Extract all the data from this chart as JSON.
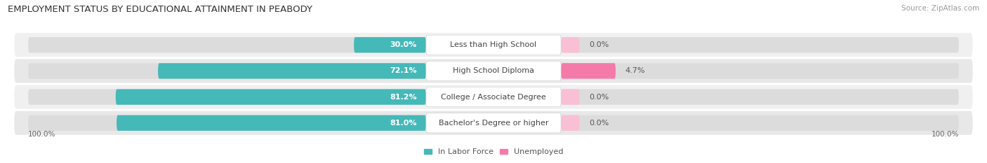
{
  "title": "EMPLOYMENT STATUS BY EDUCATIONAL ATTAINMENT IN PEABODY",
  "source": "Source: ZipAtlas.com",
  "categories": [
    "Less than High School",
    "High School Diploma",
    "College / Associate Degree",
    "Bachelor's Degree or higher"
  ],
  "labor_force": [
    30.0,
    72.1,
    81.2,
    81.0
  ],
  "unemployed": [
    0.0,
    4.7,
    0.0,
    0.0
  ],
  "labor_force_color": "#45b8b8",
  "unemployed_color": "#f47aaa",
  "row_bg_colors": [
    "#f0f0f0",
    "#e8e8e8",
    "#f0f0f0",
    "#e8e8e8"
  ],
  "bar_bg_color": "#dcdcdc",
  "x_left_label": "100.0%",
  "x_right_label": "100.0%",
  "legend_labor": "In Labor Force",
  "legend_unemployed": "Unemployed",
  "title_fontsize": 9.5,
  "label_fontsize": 8.0,
  "val_fontsize": 8.0,
  "tick_fontsize": 7.5,
  "source_fontsize": 7.5,
  "figsize": [
    14.06,
    2.33
  ],
  "dpi": 100
}
